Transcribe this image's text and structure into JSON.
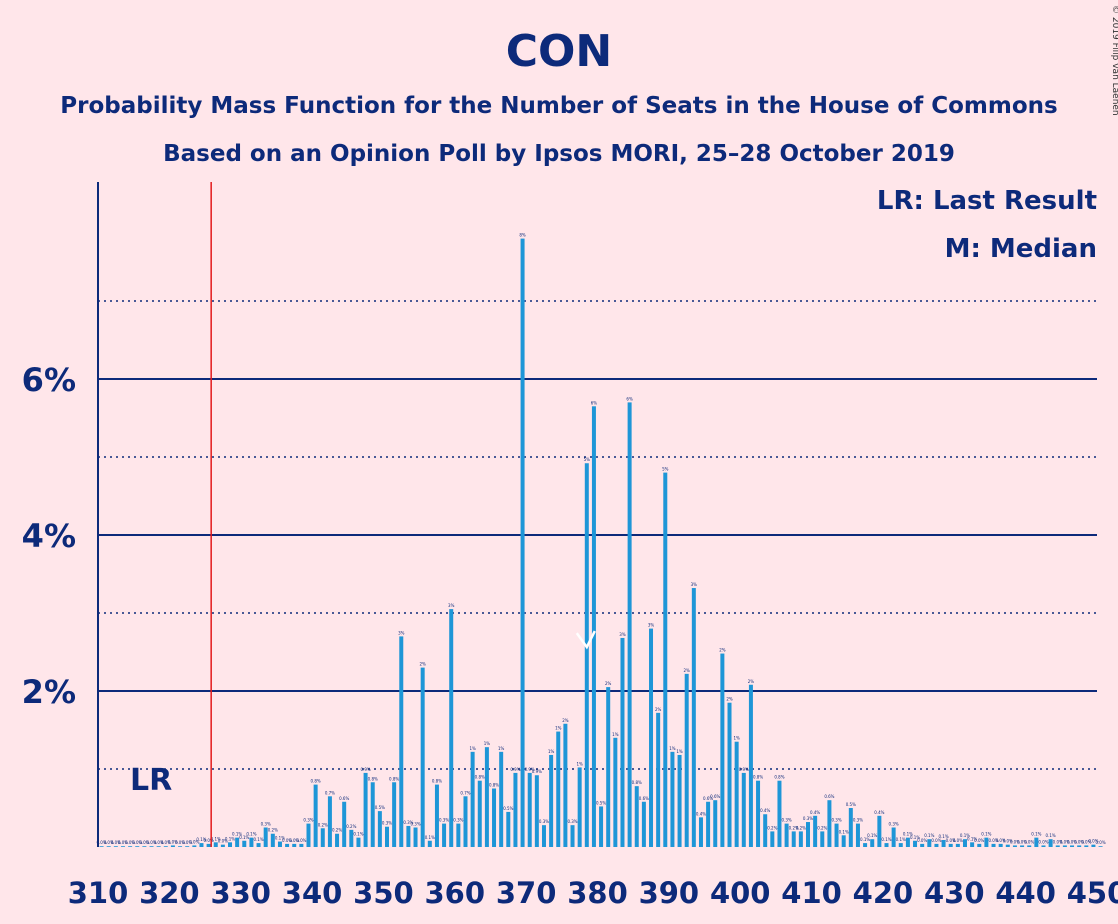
{
  "chart_data": {
    "type": "bar",
    "title": "CON",
    "subtitle_1": "Probability Mass Function for the Number of Seats in the House of Commons",
    "subtitle_2": "Based on an Opinion Poll by Ipsos MORI, 25–28 October 2019",
    "copyright": "© 2019 Filip van Laenen",
    "legend": [
      "LR: Last Result",
      "M: Median"
    ],
    "lr_label": "LR",
    "last_result": 326,
    "median": 378,
    "x_start": 310,
    "x_end": 450,
    "xticks": [
      "310",
      "320",
      "330",
      "340",
      "350",
      "360",
      "370",
      "380",
      "390",
      "400",
      "410",
      "420",
      "430",
      "440",
      "450"
    ],
    "yticks": [
      "2%",
      "4%",
      "6%"
    ],
    "ylim": [
      0,
      8.5
    ],
    "grid": "dotted at 1%, 3%, 5%, 7%; solid at 2%, 4%, 6%",
    "colors": {
      "bar": "#1e96d7",
      "axis": "#0d2a7a",
      "last_result": "#e31a1c",
      "background": "#ffe6ea"
    },
    "values": [
      0.01,
      0.01,
      0.01,
      0.01,
      0.01,
      0.01,
      0.01,
      0.01,
      0.01,
      0.01,
      0.02,
      0.01,
      0.01,
      0.02,
      0.05,
      0.04,
      0.06,
      0.03,
      0.06,
      0.12,
      0.08,
      0.12,
      0.05,
      0.25,
      0.17,
      0.07,
      0.04,
      0.04,
      0.04,
      0.3,
      0.8,
      0.24,
      0.65,
      0.17,
      0.58,
      0.22,
      0.12,
      0.95,
      0.83,
      0.46,
      0.26,
      0.83,
      2.7,
      0.27,
      0.25,
      2.3,
      0.08,
      0.8,
      0.3,
      3.05,
      0.3,
      0.65,
      1.22,
      0.85,
      1.28,
      0.75,
      1.22,
      0.45,
      0.95,
      7.8,
      0.95,
      0.92,
      0.28,
      1.18,
      1.48,
      1.58,
      0.28,
      1.02,
      4.92,
      5.65,
      0.52,
      2.05,
      1.4,
      2.68,
      5.7,
      0.78,
      0.58,
      2.8,
      1.72,
      4.8,
      1.22,
      1.18,
      2.22,
      3.32,
      0.38,
      0.58,
      0.6,
      2.48,
      1.85,
      1.35,
      0.95,
      2.08,
      0.85,
      0.42,
      0.2,
      0.85,
      0.3,
      0.2,
      0.2,
      0.32,
      0.4,
      0.2,
      0.6,
      0.3,
      0.15,
      0.5,
      0.3,
      0.05,
      0.1,
      0.4,
      0.05,
      0.25,
      0.05,
      0.12,
      0.08,
      0.04,
      0.1,
      0.04,
      0.09,
      0.04,
      0.04,
      0.1,
      0.06,
      0.04,
      0.12,
      0.04,
      0.04,
      0.03,
      0.02,
      0.02,
      0.02,
      0.12,
      0.02,
      0.1,
      0.02,
      0.02,
      0.02,
      0.02,
      0.02,
      0.03,
      0.01
    ]
  }
}
